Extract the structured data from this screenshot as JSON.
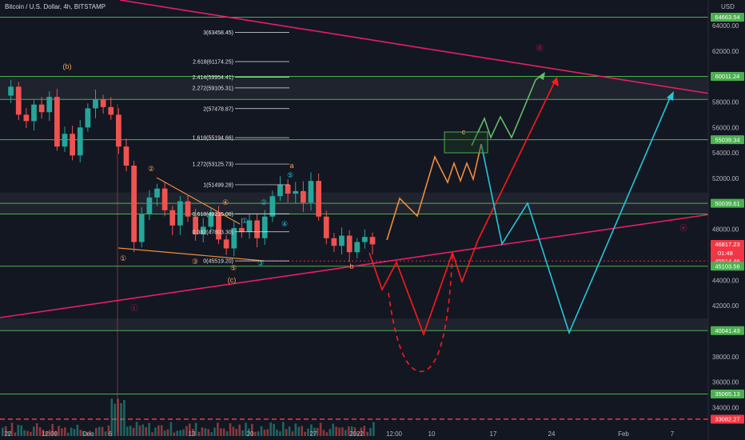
{
  "header": {
    "title": "Bitcoin / U.S. Dollar, 4h, BITSTAMP",
    "currency": "USD"
  },
  "chart_data": {
    "type": "line",
    "ylim": [
      32000,
      66000
    ],
    "y_ticks": [
      34000,
      36000,
      38000,
      40000,
      42000,
      44000,
      46000,
      48000,
      50000,
      52000,
      54000,
      56000,
      58000,
      60000,
      62000,
      64000
    ],
    "y_tick_labels": [
      "34000.00",
      "36000.00",
      "38000.00",
      "40000.00",
      "42000.00",
      "44000.00",
      "46000.00",
      "48000.00",
      "50000.00",
      "52000.00",
      "54000.00",
      "56000.00",
      "58000.00",
      "60000.00",
      "62000.00",
      "64000.00"
    ],
    "x_ticks": [
      {
        "label": "22",
        "i": 0
      },
      {
        "label": "12:00",
        "i": 1
      },
      {
        "label": "Dec",
        "i": 2
      },
      {
        "label": "6",
        "i": 3
      },
      {
        "label": "13",
        "i": 4
      },
      {
        "label": "20",
        "i": 5
      },
      {
        "label": "27",
        "i": 6
      },
      {
        "label": "2022",
        "i": 7
      },
      {
        "label": "12:00",
        "i": 8
      },
      {
        "label": "10",
        "i": 9
      },
      {
        "label": "17",
        "i": 10
      },
      {
        "label": "24",
        "i": 11
      },
      {
        "label": "Feb",
        "i": 12
      },
      {
        "label": "7",
        "i": 13
      }
    ],
    "price_series": [
      58500,
      59200,
      57000,
      56500,
      57800,
      57200,
      58400,
      54500,
      55500,
      53800,
      56000,
      57500,
      58200,
      57600,
      57000,
      54500,
      53000,
      47000,
      49200,
      50500,
      51200,
      49500,
      48300,
      50200,
      49000,
      47600,
      48200,
      49300,
      47200,
      46500,
      48100,
      47800,
      48700,
      47300,
      49000,
      50600,
      51500,
      50800,
      51000,
      50100,
      51800,
      49000,
      47300,
      46700,
      47500,
      46200,
      47000,
      47400,
      46817
    ],
    "price_labels": [
      {
        "value": 64663.54,
        "text": "64663.54",
        "color": "#4caf50"
      },
      {
        "value": 60011.24,
        "text": "60011.24",
        "color": "#4caf50"
      },
      {
        "value": 55039.34,
        "text": "55039.34",
        "color": "#4caf50"
      },
      {
        "value": 50039.61,
        "text": "50039.61",
        "color": "#4caf50"
      },
      {
        "value": 46817.23,
        "text": "46817.23",
        "color": "#f23645"
      },
      {
        "value": 45514.46,
        "text": "45514.46",
        "color": "#f23645"
      },
      {
        "value": 45103.56,
        "text": "45103.56",
        "color": "#4caf50"
      },
      {
        "value": 40041.43,
        "text": "40041.43",
        "color": "#4caf50"
      },
      {
        "value": 35065.13,
        "text": "35065.13",
        "color": "#4caf50"
      },
      {
        "value": 33082.27,
        "text": "33082.27",
        "color": "#f23645"
      }
    ],
    "countdown": "01:48",
    "horizontal_levels": [
      64663.54,
      60011.24,
      58200,
      55039.34,
      50039.61,
      49200,
      45103.56,
      40041.43,
      35065.13
    ],
    "fib_levels": [
      {
        "ratio": "3",
        "value": 63458.45,
        "text": "3(63458.45)"
      },
      {
        "ratio": "2.618",
        "value": 61174.25,
        "text": "2.618(61174.25)"
      },
      {
        "ratio": "2.414",
        "value": 59954.41,
        "text": "2.414(59954.41)"
      },
      {
        "ratio": "2.272",
        "value": 59105.31,
        "text": "2.272(59105.31)"
      },
      {
        "ratio": "2",
        "value": 57478.87,
        "text": "2(57478.87)"
      },
      {
        "ratio": "1.618",
        "value": 55194.66,
        "text": "1.618(55194.66)"
      },
      {
        "ratio": "1.272",
        "value": 53125.73,
        "text": "1.272(53125.73)"
      },
      {
        "ratio": "1",
        "value": 51499.28,
        "text": "1(51499.28)"
      },
      {
        "ratio": "0.618",
        "value": 49215.08,
        "text": "0.618(49215.08)"
      },
      {
        "ratio": "0.382",
        "value": 47803.3,
        "text": "0.382(47803.30)"
      },
      {
        "ratio": "0",
        "value": 45519.2,
        "text": "0(45519.20)"
      }
    ],
    "wave_labels": [
      {
        "text": "(b)",
        "color": "#f7a35c"
      },
      {
        "text": "(c)",
        "color": "#f7a35c"
      },
      {
        "text": "a",
        "color": "#f7a35c"
      },
      {
        "text": "b",
        "color": "#f7a35c"
      },
      {
        "text": "c",
        "color": "#f7a35c"
      },
      {
        "text": "ⓓ",
        "color": "#e91e63"
      },
      {
        "text": "ⓔ",
        "color": "#e91e63"
      },
      {
        "text": "ⓒ",
        "color": "#e91e63"
      },
      {
        "text": "①",
        "color": "#f7a35c"
      },
      {
        "text": "②",
        "color": "#f7a35c"
      },
      {
        "text": "③",
        "color": "#f7a35c"
      },
      {
        "text": "④",
        "color": "#f7a35c"
      },
      {
        "text": "⑤",
        "color": "#f7a35c"
      },
      {
        "text": "①",
        "color": "#26c6da"
      },
      {
        "text": "②",
        "color": "#26c6da"
      },
      {
        "text": "③",
        "color": "#26c6da"
      },
      {
        "text": "④",
        "color": "#26c6da"
      },
      {
        "text": "⑤",
        "color": "#26c6da"
      }
    ],
    "colors": {
      "background": "#131722",
      "up": "#26a69a",
      "down": "#ef5350",
      "trendline": "#e91e63",
      "level": "#4caf50",
      "projection_red": "#ff1a1a",
      "projection_orange": "#f28c3a",
      "projection_green": "#66bb6a",
      "projection_cyan": "#26c6da"
    }
  }
}
